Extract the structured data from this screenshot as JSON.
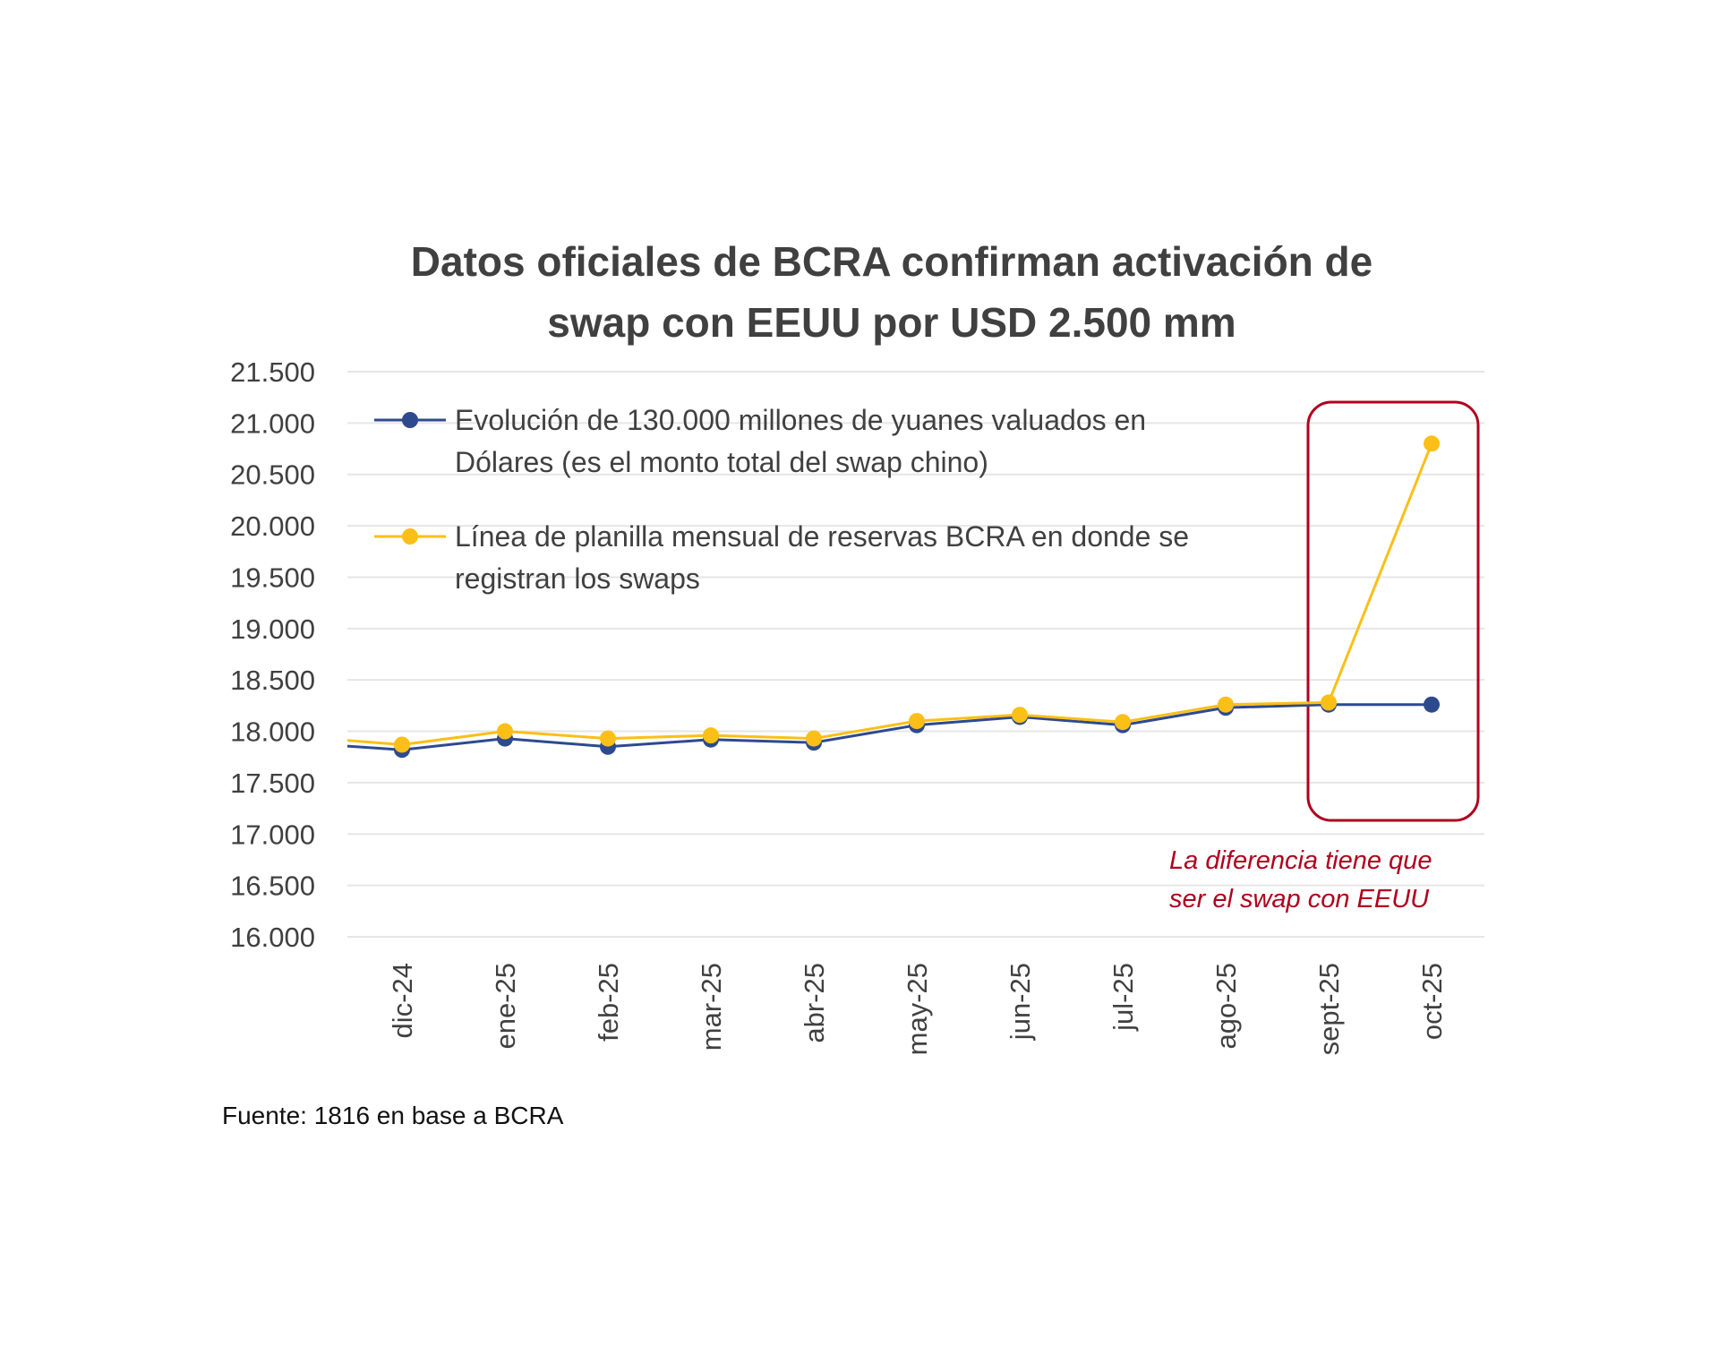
{
  "chart_data": {
    "type": "line",
    "title": "Datos oficiales de BCRA confirman activación de swap con EEUU por USD 2.500 mm",
    "title_lines": [
      "Datos oficiales de BCRA confirman activación de",
      "swap con EEUU por USD 2.500 mm"
    ],
    "categories": [
      "dic-24",
      "ene-25",
      "feb-25",
      "mar-25",
      "abr-25",
      "may-25",
      "jun-25",
      "jul-25",
      "ago-25",
      "sept-25",
      "oct-25"
    ],
    "ylim": [
      16000,
      21500
    ],
    "yticks": [
      "16.000",
      "16.500",
      "17.000",
      "17.500",
      "18.000",
      "18.500",
      "19.000",
      "19.500",
      "20.000",
      "20.500",
      "21.000",
      "21.500"
    ],
    "ytick_values": [
      16000,
      16500,
      17000,
      17500,
      18000,
      18500,
      19000,
      19500,
      20000,
      20500,
      21000,
      21500
    ],
    "grid": true,
    "legend_placement": "top-left",
    "series": [
      {
        "name": "Evolución de 130.000 millones de yuanes valuados en Dólares (es el monto total del swap chino)",
        "name_lines": [
          "Evolución de 130.000 millones de yuanes valuados en",
          "Dólares (es el monto total del swap chino)"
        ],
        "color": "#2e4a8e",
        "values": [
          17820,
          17930,
          17850,
          17920,
          17890,
          18060,
          18140,
          18060,
          18230,
          18260,
          18260
        ]
      },
      {
        "name": "Línea de planilla mensual de reservas BCRA en donde se registran los swaps",
        "name_lines": [
          "Línea de planilla mensual de reservas BCRA en donde se",
          "registran los swaps"
        ],
        "color": "#fbbf17",
        "values": [
          17870,
          18000,
          17930,
          17960,
          17930,
          18100,
          18160,
          18090,
          18260,
          18280,
          20800
        ]
      }
    ],
    "annotation": {
      "lines": [
        "La diferencia tiene que",
        "ser el swap con EEUU"
      ],
      "color": "#b0001e",
      "highlight_categories": [
        "sept-25",
        "oct-25"
      ]
    },
    "source": "Fuente: 1816 en base a BCRA"
  }
}
